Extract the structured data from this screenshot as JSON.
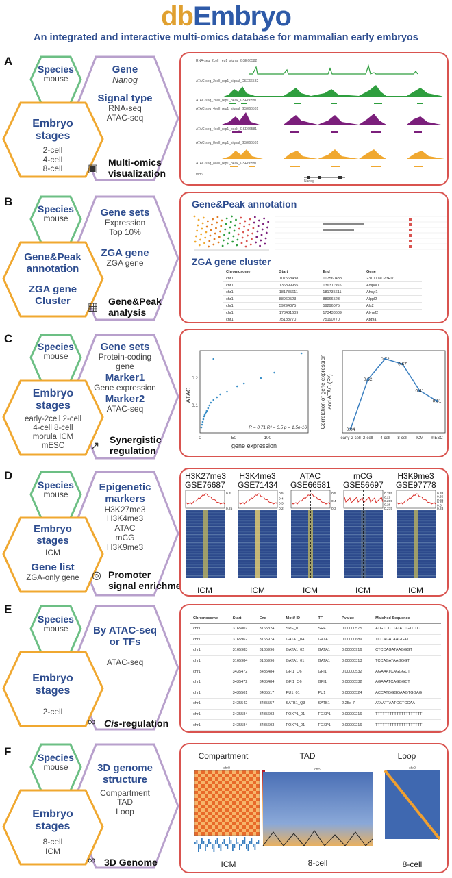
{
  "header": {
    "logo_db": "db",
    "logo_embryo": "Embryo",
    "subtitle": "An integrated and interactive multi-omics database for mammalian early embryos"
  },
  "colors": {
    "green": "#6cbf84",
    "purple": "#b8a0cc",
    "orange": "#f0a830",
    "blue": "#2e4d8f",
    "red": "#d9534f"
  },
  "panels": {
    "A": {
      "letter": "A",
      "species_title": "Species",
      "species_value": "mouse",
      "gene_title": "Gene",
      "gene_value": "Nanog",
      "signal_title": "Signal type",
      "signal_values": [
        "RNA-seq",
        "ATAC-seq"
      ],
      "stages_title": "Embryo",
      "stages_title2": "stages",
      "stages_values": [
        "2-cell",
        "4-cell",
        "8-cell"
      ],
      "feature": "Multi-omics",
      "feature2": "visualization",
      "feature_icon": "image-icon",
      "tracks": [
        "RNA-seq_2cell_rep1_signal_GSE66582",
        "ATAC-seq_2cell_rep1_signal_GSE66582",
        "ATAC-seq_2cell_rep1_peak_GSE66581",
        "ATAC-seq_4cell_rep1_signal_GSE66581",
        "ATAC-seq_4cell_rep1_peak_GSE66581",
        "ATAC-seq_8cell_rep1_signal_GSE66581",
        "ATAC-seq_8cell_rep1_peak_GSE66581",
        "mm9"
      ],
      "gene_labels": [
        "Nanog",
        "Nanog"
      ]
    },
    "B": {
      "letter": "B",
      "species_title": "Species",
      "species_value": "mouse",
      "genesets_title": "Gene sets",
      "genesets_values": [
        "Expression",
        "Top 10%"
      ],
      "zga_title": "ZGA gene",
      "zga_value": "ZGA gene",
      "annot_title": "Gene&Peak",
      "annot_title2": "annotation",
      "cluster_title": "ZGA gene",
      "cluster_title2": "Cluster",
      "feature": "Gene&Peak",
      "feature2": "analysis",
      "feature_icon": "chart-icon",
      "heading1": "Gene&Peak annotation",
      "heading2": "ZGA gene cluster",
      "cluster_cols": [
        "Chromosome",
        "Start",
        "End",
        "Gene"
      ],
      "cluster_rows": [
        [
          "chr1",
          "107568438",
          "107560438",
          "2310009C23Rik"
        ],
        [
          "chr1",
          "136399955",
          "136311955",
          "Adipor1"
        ],
        [
          "chr1",
          "181735611",
          "181735611",
          "Ahcyl1"
        ],
        [
          "chr1",
          "88960523",
          "88966523",
          "Alppl2"
        ],
        [
          "chr1",
          "59294075",
          "59296075",
          "Als2"
        ],
        [
          "chr1",
          "173431609",
          "173433609",
          "Alyref2"
        ],
        [
          "chr1",
          "75188770",
          "75190770",
          "Atg9a"
        ]
      ]
    },
    "C": {
      "letter": "C",
      "species_title": "Species",
      "species_value": "mouse",
      "genesets_title": "Gene sets",
      "genesets_value1": "Protein-coding",
      "genesets_value2": "gene",
      "marker1_title": "Marker1",
      "marker1_value": "Gene expression",
      "marker2_title": "Marker2",
      "marker2_value": "ATAC-seq",
      "stages_title": "Embryo",
      "stages_title2": "stages",
      "stages_values": [
        "early-2cell 2-cell",
        "4-cell 8-cell",
        "morula ICM",
        "mESC"
      ],
      "feature": "Synergistic",
      "feature2": "regulation",
      "feature_icon": "trend-icon",
      "scatter_xlabel": "gene expression",
      "scatter_ylabel": "ATAC",
      "scatter_stats": "R = 0.71   R² = 0.5   p = 1.5e-16",
      "line_ylabel1": "Correlation of gene expression",
      "line_ylabel2": "and ATAC (R²)"
    },
    "D": {
      "letter": "D",
      "species_title": "Species",
      "species_value": "mouse",
      "epi_title": "Epigenetic",
      "epi_title2": "markers",
      "epi_values": [
        "H3K27me3",
        "H3K4me3",
        "ATAC",
        "mCG",
        "H3K9me3"
      ],
      "stages_title": "Embryo",
      "stages_title2": "stages",
      "stages_value": "ICM",
      "genelist_title": "Gene list",
      "genelist_value": "ZGA-only gene",
      "feature": "Promoter",
      "feature2": "signal enrichment",
      "feature_icon": "target-icon",
      "heatmaps": [
        {
          "mark": "H3K27me3",
          "gse": "GSE76687",
          "stage": "ICM",
          "ticks": [
            "0.3",
            "0.25"
          ]
        },
        {
          "mark": "H3K4me3",
          "gse": "GSE71434",
          "stage": "ICM",
          "ticks": [
            "0.5",
            "0.4",
            "0.3",
            "0.2"
          ]
        },
        {
          "mark": "ATAC",
          "gse": "GSE66581",
          "stage": "ICM",
          "ticks": [
            "0.5",
            "0.4",
            "0.3"
          ]
        },
        {
          "mark": "mCG",
          "gse": "GSE56697",
          "stage": "ICM",
          "ticks": [
            "0.295",
            "0.29",
            "0.285",
            "0.28",
            "0.275"
          ]
        },
        {
          "mark": "H3K9me3",
          "gse": "GSE97778",
          "stage": "ICM",
          "ticks": [
            "0.38",
            "0.36",
            "0.34",
            "0.32",
            "0.3",
            "0.28"
          ]
        }
      ]
    },
    "E": {
      "letter": "E",
      "species_title": "Species",
      "species_value": "mouse",
      "by_title": "By ATAC-seq",
      "by_title2": "or TFs",
      "by_value": "ATAC-seq",
      "stages_title": "Embryo",
      "stages_title2": "stages",
      "stages_value": "2-cell",
      "feature_prefix": "Cis",
      "feature_suffix": "-regulation",
      "feature_icon": "link-icon",
      "cols": [
        "Chromosome",
        "Start",
        "End",
        "Motif ID",
        "TF",
        "Pvalue",
        "Matched Sequence"
      ],
      "rows": [
        [
          "chr1",
          "3165807",
          "3165824",
          "SRF_01",
          "SRF",
          "0.00000575",
          "ATGTCCTTATATTGTCTC"
        ],
        [
          "chr1",
          "3165962",
          "3165974",
          "GATA1_04",
          "GATA1",
          "0.00000689",
          "TCCAGATAAGGAT"
        ],
        [
          "chr1",
          "3165983",
          "3165996",
          "GATA1_02",
          "GATA1",
          "0.00000916",
          "CTCCAGATAAGGGT"
        ],
        [
          "chr1",
          "3165984",
          "3165996",
          "GATA1_01",
          "GATA1",
          "0.00000313",
          "TCCAGATAAGGGT"
        ],
        [
          "chr1",
          "3435472",
          "3435484",
          "GFI1_Q6",
          "GFI1",
          "0.00000532",
          "AGAAATCAGGGCT"
        ],
        [
          "chr1",
          "3435472",
          "3435484",
          "GFI1_Q6",
          "GFI1",
          "0.00000532",
          "AGAAATCAGGGCT"
        ],
        [
          "chr1",
          "3435501",
          "3435517",
          "PU1_01",
          "PU1",
          "0.00000524",
          "ACCATGGGGAAGTGGAG"
        ],
        [
          "chr1",
          "3435542",
          "3435557",
          "SATB1_Q3",
          "SATB1",
          "2.25e-7",
          "ATAATTAATGGTCCAA"
        ],
        [
          "chr1",
          "3435584",
          "3435603",
          "FOXP1_01",
          "FOXP1",
          "0.00000216",
          "TTTTTTTTTTTTTTTTTTTT"
        ],
        [
          "chr1",
          "3435584",
          "3435603",
          "FOXP1_01",
          "FOXP1",
          "0.00000216",
          "TTTTTTTTTTTTTTTTTTTT"
        ]
      ]
    },
    "F": {
      "letter": "F",
      "species_title": "Species",
      "species_value": "mouse",
      "genome_title": "3D genome",
      "genome_title2": "structure",
      "genome_values": [
        "Compartment",
        "TAD",
        "Loop"
      ],
      "stages_title": "Embryo",
      "stages_title2": "stages",
      "stages_values": [
        "8-cell",
        "ICM"
      ],
      "feature": "3D Genome",
      "feature_icon": "link-icon",
      "maps": [
        {
          "title": "Compartment",
          "stage": "ICM"
        },
        {
          "title": "TAD",
          "stage": "8-cell"
        },
        {
          "title": "Loop",
          "stage": "8-cell"
        }
      ],
      "chr_label": "chr9"
    }
  },
  "chart_data": [
    {
      "type": "scatter",
      "xlabel": "gene expression",
      "ylabel": "ATAC",
      "stats": "R = 0.71, R² = 0.5, p = 1.5e-16",
      "xlim": [
        0,
        160
      ],
      "ylim": [
        0,
        0.3
      ],
      "x_ticks": [
        0,
        50,
        100
      ],
      "y_ticks": [
        0.1,
        0.2
      ],
      "points": [
        [
          2,
          0.02
        ],
        [
          3,
          0.03
        ],
        [
          4,
          0.04
        ],
        [
          5,
          0.05
        ],
        [
          6,
          0.06
        ],
        [
          7,
          0.065
        ],
        [
          8,
          0.07
        ],
        [
          9,
          0.075
        ],
        [
          10,
          0.08
        ],
        [
          12,
          0.09
        ],
        [
          14,
          0.1
        ],
        [
          16,
          0.11
        ],
        [
          20,
          0.12
        ],
        [
          25,
          0.13
        ],
        [
          30,
          0.14
        ],
        [
          40,
          0.15
        ],
        [
          55,
          0.17
        ],
        [
          65,
          0.18
        ],
        [
          90,
          0.2
        ],
        [
          110,
          0.22
        ],
        [
          20,
          0.27
        ],
        [
          150,
          0.29
        ]
      ]
    },
    {
      "type": "line",
      "categories": [
        "early-2-cell",
        "2-cell",
        "4-cell",
        "8-cell",
        "ICM",
        "mESC"
      ],
      "values": [
        0.04,
        0.52,
        0.72,
        0.67,
        0.41,
        0.31
      ],
      "labels": [
        "0.04",
        "0.52",
        "0.72",
        "0.67",
        "0.41",
        "0.31"
      ],
      "ylabel": "Correlation of gene expression and ATAC (R²)",
      "ylim": [
        0,
        0.8
      ]
    }
  ]
}
